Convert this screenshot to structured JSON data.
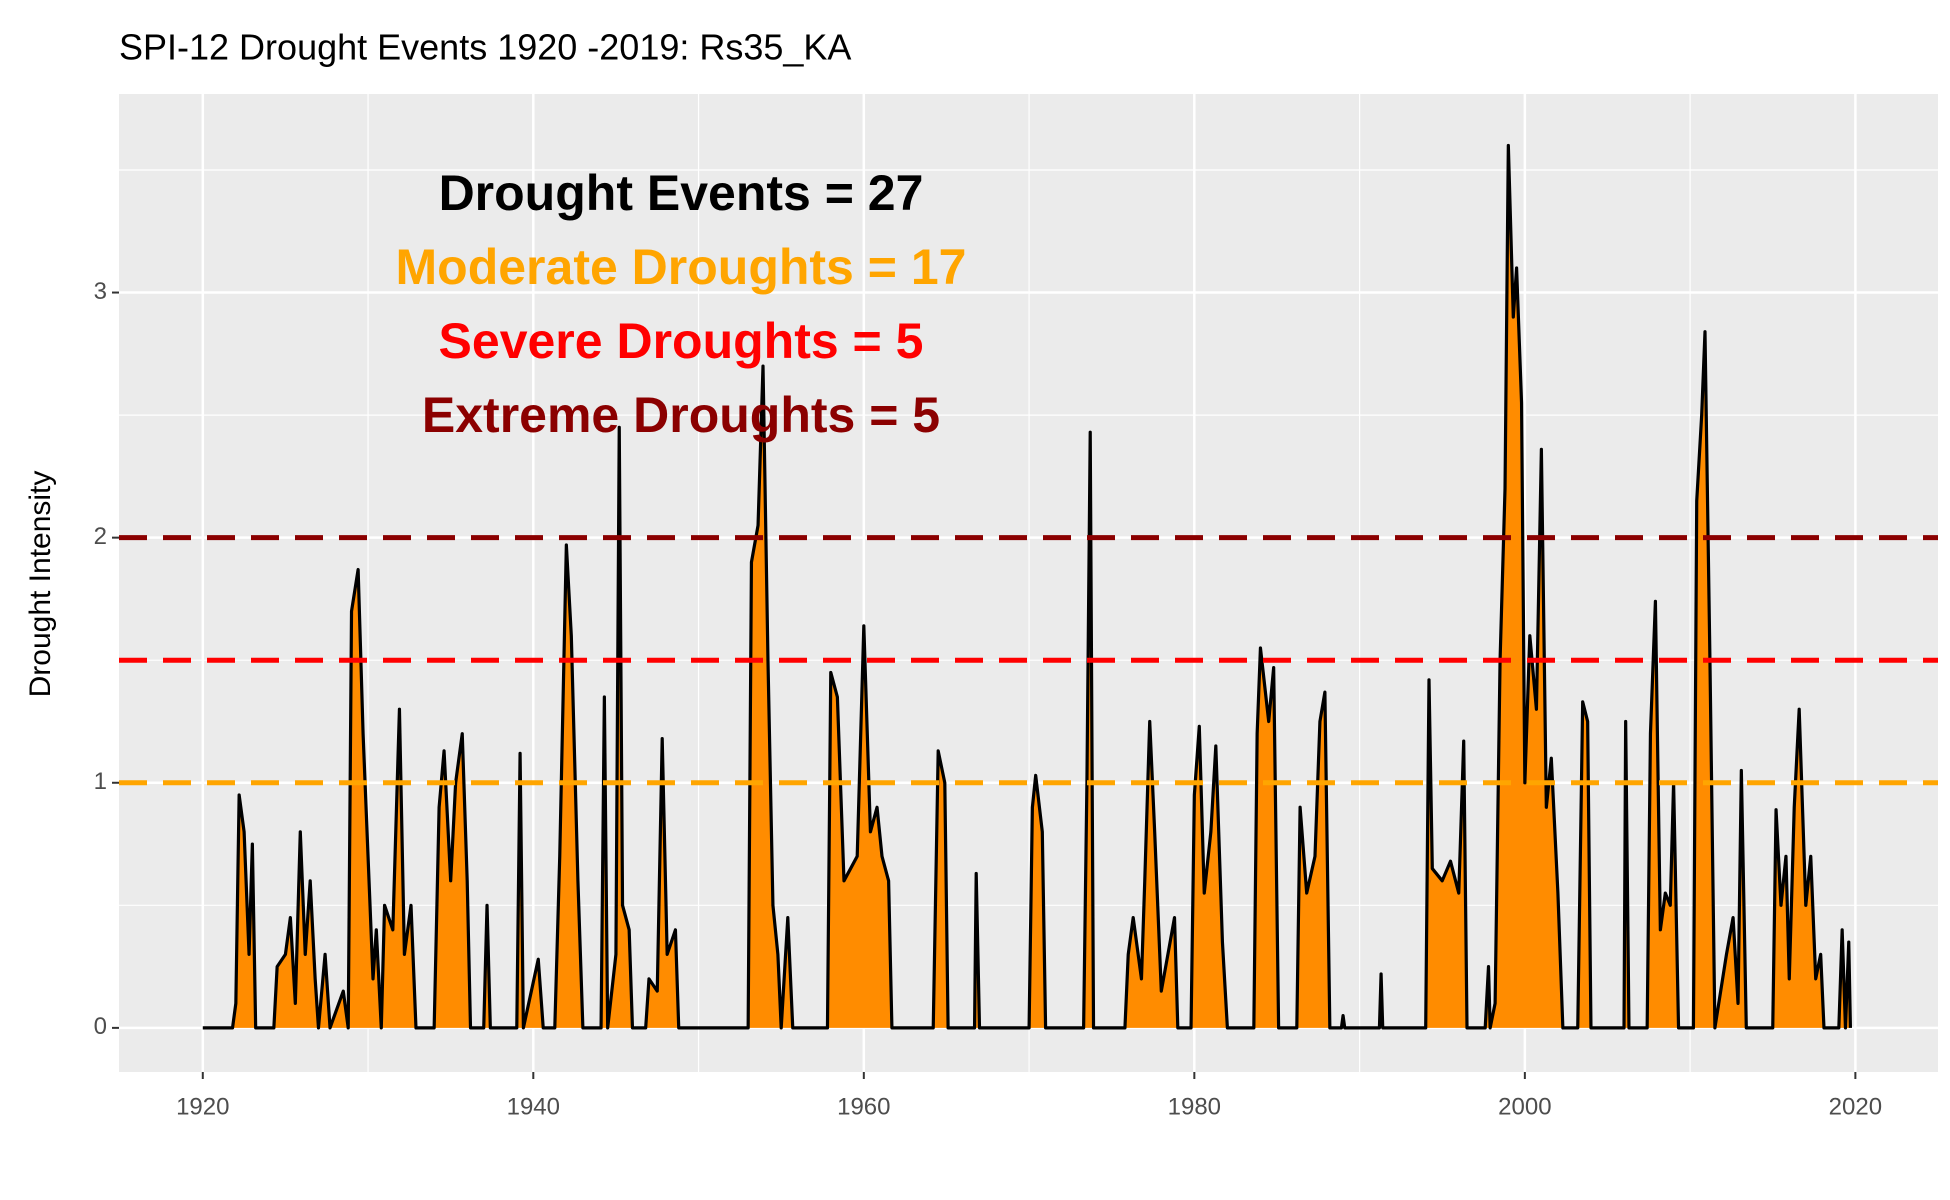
{
  "chart_data": {
    "type": "area",
    "title": "SPI-12 Drought Events 1920 -2019: Rs35_KA",
    "y_label": "Drought Intensity",
    "annotations": [
      {
        "text": "Drought Events = 27",
        "color": "#000000"
      },
      {
        "text": "Moderate Droughts = 17",
        "color": "#ffa500"
      },
      {
        "text": "Severe Droughts = 5",
        "color": "#ff0000"
      },
      {
        "text": "Extreme Droughts = 5",
        "color": "#8b0000"
      }
    ],
    "thresholds": [
      {
        "value": 1,
        "color": "#ffa500"
      },
      {
        "value": 1.5,
        "color": "#ff0000"
      },
      {
        "value": 2,
        "color": "#8b0000"
      }
    ],
    "fill_color": "#ff8c00",
    "line_color": "#000000",
    "xlim": [
      1914.93,
      2025.0
    ],
    "ylim": [
      -0.18,
      3.81
    ],
    "xticks": [
      1920,
      1940,
      1960,
      1980,
      2000,
      2020
    ],
    "yticks": [
      0,
      1,
      2,
      3
    ],
    "grid": true,
    "x": [
      1920.0,
      1921.8,
      1922.0,
      1922.2,
      1922.5,
      1922.8,
      1923.0,
      1923.2,
      1924.3,
      1924.5,
      1925.0,
      1925.3,
      1925.6,
      1925.9,
      1926.2,
      1926.5,
      1926.8,
      1927.0,
      1927.4,
      1927.7,
      1928.5,
      1928.8,
      1929.0,
      1929.4,
      1929.7,
      1930.0,
      1930.3,
      1930.5,
      1930.8,
      1931.0,
      1931.5,
      1931.9,
      1932.2,
      1932.6,
      1932.9,
      1934.0,
      1934.3,
      1934.6,
      1935.0,
      1935.3,
      1935.7,
      1936.0,
      1936.2,
      1937.0,
      1937.2,
      1937.4,
      1939.0,
      1939.2,
      1939.4,
      1940.3,
      1940.6,
      1941.3,
      1941.6,
      1942.0,
      1942.3,
      1942.7,
      1943.0,
      1944.1,
      1944.3,
      1944.5,
      1945.0,
      1945.2,
      1945.4,
      1945.8,
      1946.0,
      1946.8,
      1947.0,
      1947.5,
      1947.8,
      1948.1,
      1948.6,
      1948.8,
      1953.0,
      1953.2,
      1953.6,
      1953.9,
      1954.2,
      1954.5,
      1954.8,
      1955.0,
      1955.4,
      1955.7,
      1957.8,
      1958.0,
      1958.4,
      1958.8,
      1959.2,
      1959.6,
      1960.0,
      1960.4,
      1960.8,
      1961.1,
      1961.5,
      1961.7,
      1964.2,
      1964.5,
      1964.9,
      1965.1,
      1966.7,
      1966.8,
      1967.0,
      1970.0,
      1970.2,
      1970.4,
      1970.8,
      1971.0,
      1973.3,
      1973.5,
      1973.7,
      1973.9,
      1975.8,
      1976.0,
      1976.3,
      1976.8,
      1977.0,
      1977.3,
      1977.6,
      1978.0,
      1978.4,
      1978.8,
      1979.0,
      1979.8,
      1980.0,
      1980.3,
      1980.6,
      1981.0,
      1981.3,
      1981.7,
      1982.0,
      1983.6,
      1983.8,
      1984.0,
      1984.5,
      1984.8,
      1985.1,
      1986.2,
      1986.4,
      1986.8,
      1987.3,
      1987.6,
      1987.9,
      1988.2,
      1988.9,
      1989.0,
      1989.1,
      1991.2,
      1991.3,
      1991.4,
      1994.0,
      1994.2,
      1994.4,
      1995.0,
      1995.5,
      1996.0,
      1996.3,
      1996.5,
      1997.6,
      1997.8,
      1997.9,
      1998.2,
      1998.5,
      1998.8,
      1999.0,
      1999.3,
      1999.5,
      1999.8,
      2000.0,
      2000.3,
      2000.7,
      2001.0,
      2001.3,
      2001.6,
      2002.0,
      2002.3,
      2003.2,
      2003.5,
      2003.8,
      2004.0,
      2006.0,
      2006.1,
      2006.3,
      2007.4,
      2007.6,
      2007.9,
      2008.2,
      2008.5,
      2008.8,
      2009.0,
      2009.3,
      2010.2,
      2010.4,
      2010.7,
      2010.9,
      2011.2,
      2011.5,
      2012.2,
      2012.6,
      2012.9,
      2013.1,
      2013.4,
      2015.0,
      2015.2,
      2015.5,
      2015.8,
      2016.0,
      2016.3,
      2016.6,
      2017.0,
      2017.3,
      2017.6,
      2017.9,
      2018.1,
      2019.0,
      2019.2,
      2019.4,
      2019.6,
      2019.7
    ],
    "values": [
      0,
      0,
      0.1,
      0.95,
      0.8,
      0.3,
      0.75,
      0,
      0,
      0.25,
      0.3,
      0.45,
      0.1,
      0.8,
      0.3,
      0.6,
      0.2,
      0,
      0.3,
      0,
      0.15,
      0,
      1.7,
      1.87,
      1.2,
      0.7,
      0.2,
      0.4,
      0,
      0.5,
      0.4,
      1.3,
      0.3,
      0.5,
      0,
      0,
      0.9,
      1.13,
      0.6,
      1.0,
      1.2,
      0.6,
      0,
      0,
      0.5,
      0,
      0,
      1.12,
      0,
      0.28,
      0,
      0,
      0.7,
      1.97,
      1.6,
      0.6,
      0,
      0,
      1.35,
      0,
      0.3,
      2.45,
      0.5,
      0.4,
      0,
      0,
      0.2,
      0.15,
      1.18,
      0.3,
      0.4,
      0,
      0,
      1.9,
      2.05,
      2.7,
      1.5,
      0.5,
      0.3,
      0,
      0.45,
      0,
      0,
      1.45,
      1.35,
      0.6,
      0.65,
      0.7,
      1.64,
      0.8,
      0.9,
      0.7,
      0.6,
      0,
      0,
      1.13,
      1.0,
      0,
      0,
      0.63,
      0,
      0,
      0.9,
      1.03,
      0.8,
      0,
      0,
      1.0,
      2.43,
      0,
      0,
      0.3,
      0.45,
      0.2,
      0.6,
      1.25,
      0.8,
      0.15,
      0.3,
      0.45,
      0,
      0,
      0.95,
      1.23,
      0.55,
      0.8,
      1.15,
      0.35,
      0,
      0,
      1.2,
      1.55,
      1.25,
      1.47,
      0,
      0,
      0.9,
      0.55,
      0.7,
      1.25,
      1.37,
      0,
      0,
      0.05,
      0,
      0,
      0.22,
      0,
      0,
      1.42,
      0.65,
      0.6,
      0.68,
      0.55,
      1.17,
      0,
      0,
      0.25,
      0,
      0.1,
      1.5,
      2.2,
      3.6,
      2.9,
      3.1,
      2.55,
      1.0,
      1.6,
      1.3,
      2.36,
      0.9,
      1.1,
      0.55,
      0,
      0,
      1.33,
      1.25,
      0,
      0,
      1.25,
      0,
      0,
      1.2,
      1.74,
      0.4,
      0.55,
      0.5,
      1.0,
      0,
      0,
      2.15,
      2.5,
      2.84,
      1.5,
      0,
      0.3,
      0.45,
      0.1,
      1.05,
      0,
      0,
      0.89,
      0.5,
      0.7,
      0.2,
      0.9,
      1.3,
      0.5,
      0.7,
      0.2,
      0.3,
      0,
      0,
      0.4,
      0,
      0.35,
      0
    ]
  }
}
